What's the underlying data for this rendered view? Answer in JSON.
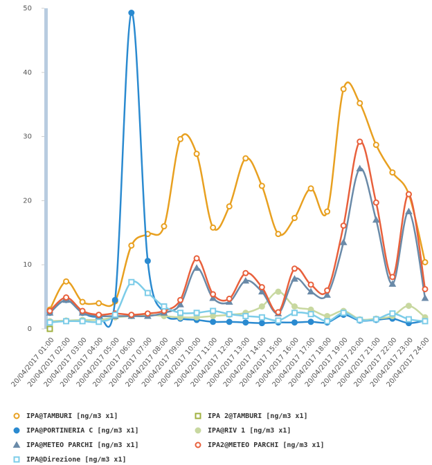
{
  "chart_data": {
    "type": "line",
    "smooth": true,
    "grid": false,
    "legend": "bottom",
    "categories": [
      "20/04/2017 01:00",
      "20/04/2017 02:00",
      "20/04/2017 03:00",
      "20/04/2017 04:00",
      "20/04/2017 05:00",
      "20/04/2017 06:00",
      "20/04/2017 07:00",
      "20/04/2017 08:00",
      "20/04/2017 09:00",
      "20/04/2017 10:00",
      "20/04/2017 11:00",
      "20/04/2017 12:00",
      "20/04/2017 13:00",
      "20/04/2017 14:00",
      "20/04/2017 15:00",
      "20/04/2017 16:00",
      "20/04/2017 17:00",
      "20/04/2017 18:00",
      "20/04/2017 19:00",
      "20/04/2017 20:00",
      "20/04/2017 21:00",
      "20/04/2017 22:00",
      "20/04/2017 23:00",
      "20/04/2017 24:00"
    ],
    "ylim": [
      0,
      50
    ],
    "yticks": [
      0,
      10,
      20,
      30,
      40,
      50
    ],
    "series": [
      {
        "name": "IPA@TAMBURI [ng/m3 x1]",
        "color": "#e8a020",
        "marker": "circle-open",
        "values": [
          3.0,
          7.4,
          4.2,
          4.0,
          4.3,
          13.0,
          14.8,
          16.0,
          29.6,
          27.3,
          15.8,
          19.1,
          26.6,
          22.3,
          14.8,
          17.3,
          21.9,
          18.3,
          37.4,
          35.2,
          28.7,
          24.4,
          21.0,
          10.4
        ]
      },
      {
        "name": "IPA 2@TAMBURI [ng/m3 x1]",
        "color": "#a0b040",
        "marker": "square-open",
        "values": [
          0,
          null,
          null,
          null,
          null,
          null,
          null,
          null,
          null,
          null,
          null,
          null,
          null,
          null,
          null,
          null,
          null,
          null,
          null,
          null,
          null,
          null,
          null,
          null
        ]
      },
      {
        "name": "IPA@PORTINERIA C [ng/m3 x1]",
        "color": "#2a8ad0",
        "marker": "circle",
        "values": [
          2.5,
          4.5,
          2.5,
          2.0,
          4.5,
          49.3,
          10.6,
          2.5,
          1.6,
          1.4,
          1.1,
          1.1,
          1.0,
          0.9,
          1.0,
          1.0,
          1.1,
          1.0,
          2.2,
          1.3,
          1.4,
          1.6,
          0.9,
          1.3
        ]
      },
      {
        "name": "IPA@RIV 1 [ng/m3 x1]",
        "color": "#c8d8a0",
        "marker": "circle",
        "values": [
          1.2,
          1.3,
          1.4,
          1.4,
          1.8,
          2.0,
          2.2,
          2.0,
          1.8,
          1.8,
          2.0,
          2.2,
          2.5,
          3.5,
          5.8,
          3.5,
          3.0,
          2.0,
          2.8,
          1.5,
          1.6,
          2.0,
          3.6,
          1.8
        ]
      },
      {
        "name": "IPA@METEO PARCHI [ng/m3 x1]",
        "color": "#6a8aa8",
        "marker": "triangle",
        "values": [
          2.5,
          4.5,
          2.5,
          2.0,
          2.0,
          2.0,
          2.0,
          2.5,
          3.8,
          9.5,
          4.8,
          4.2,
          7.5,
          5.8,
          2.4,
          7.8,
          5.8,
          5.3,
          13.5,
          25.0,
          17.0,
          7.0,
          18.3,
          4.8
        ]
      },
      {
        "name": "IPA2@METEO PARCHI [ng/m3 x1]",
        "color": "#e8603c",
        "marker": "circle-open",
        "values": [
          2.8,
          4.9,
          2.8,
          2.2,
          2.4,
          2.2,
          2.4,
          2.8,
          4.5,
          11.0,
          5.4,
          4.7,
          8.7,
          6.5,
          2.6,
          9.4,
          6.9,
          6.0,
          16.1,
          29.2,
          19.7,
          8.1,
          21.0,
          6.2
        ]
      },
      {
        "name": "IPA@Direzione [ng/m3 x1]",
        "color": "#7ccce8",
        "marker": "square-open",
        "values": [
          1.0,
          1.2,
          1.2,
          1.1,
          2.2,
          7.3,
          5.6,
          3.5,
          2.5,
          2.5,
          2.8,
          2.3,
          2.0,
          1.8,
          1.3,
          2.5,
          2.3,
          1.2,
          2.5,
          1.4,
          1.5,
          2.4,
          1.5,
          1.2
        ]
      }
    ]
  }
}
